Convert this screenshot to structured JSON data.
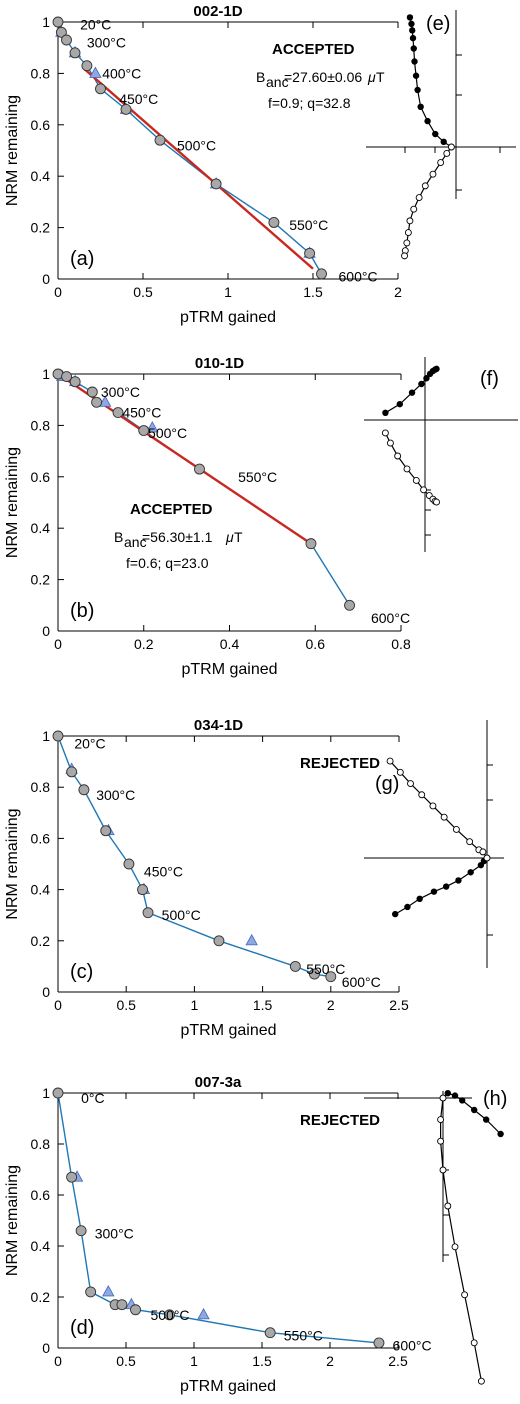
{
  "colors": {
    "line": "#1f78b4",
    "fit": "#c8281e",
    "circle_fill": "#a8a8a8",
    "triangle_fill": "#8fa9e0",
    "triangle_stroke": "#4a6fc4"
  },
  "chart_data": [
    {
      "type": "scatter",
      "panel_label": "(a)",
      "title": "002-1D",
      "xlabel": "pTRM gained",
      "ylabel": "NRM remaining",
      "xlim": [
        0,
        2
      ],
      "ylim": [
        0,
        1
      ],
      "xticks": [
        "0",
        "0.5",
        "1",
        "1.5",
        "2"
      ],
      "yticks": [
        "0",
        "0.2",
        "0.4",
        "0.6",
        "0.8",
        "1"
      ],
      "status": "ACCEPTED",
      "stats": {
        "banc_prefix": "B",
        "banc_sub": "anc",
        "banc_value": "=27.60±0.06",
        "banc_mu": "μ",
        "banc_unit": "T",
        "fq": "f=0.9; q=32.8"
      },
      "points": [
        [
          0,
          1
        ],
        [
          0.02,
          0.96
        ],
        [
          0.05,
          0.93
        ],
        [
          0.1,
          0.88
        ],
        [
          0.17,
          0.83
        ],
        [
          0.25,
          0.74
        ],
        [
          0.4,
          0.66
        ],
        [
          0.6,
          0.54
        ],
        [
          0.93,
          0.37
        ],
        [
          1.27,
          0.22
        ],
        [
          1.48,
          0.1
        ],
        [
          1.55,
          0.02
        ]
      ],
      "checks": [
        [
          0.02,
          0.96
        ],
        [
          0.1,
          0.88
        ],
        [
          0.22,
          0.8
        ],
        [
          0.4,
          0.66
        ],
        [
          0.93,
          0.37
        ],
        [
          1.48,
          0.1
        ]
      ],
      "fit": [
        [
          0.15,
          0.82
        ],
        [
          1.5,
          0.04
        ]
      ],
      "temp_labels": [
        {
          "text": "20°C",
          "x": 0.13,
          "y": 0.99
        },
        {
          "text": "300°C",
          "x": 0.17,
          "y": 0.92
        },
        {
          "text": "400°C",
          "x": 0.26,
          "y": 0.8
        },
        {
          "text": "450°C",
          "x": 0.36,
          "y": 0.7
        },
        {
          "text": "500°C",
          "x": 0.7,
          "y": 0.52
        },
        {
          "text": "550°C",
          "x": 1.36,
          "y": 0.21
        },
        {
          "text": "600°C",
          "x": 1.65,
          "y": 0.01
        }
      ]
    },
    {
      "type": "scatter",
      "panel_label": "(b)",
      "title": "010-1D",
      "xlabel": "pTRM gained",
      "ylabel": "NRM remaining",
      "xlim": [
        0,
        0.8
      ],
      "ylim": [
        0,
        1
      ],
      "xticks": [
        "0",
        "0.2",
        "0.4",
        "0.6",
        "0.8"
      ],
      "yticks": [
        "0",
        "0.2",
        "0.4",
        "0.6",
        "0.8",
        "1"
      ],
      "status": "ACCEPTED",
      "stats": {
        "banc_prefix": "B",
        "banc_sub": "anc",
        "banc_value": "=56.30±1.1",
        "banc_mu": "μ",
        "banc_unit": "T",
        "fq": "f=0.6; q=23.0"
      },
      "points": [
        [
          0,
          1
        ],
        [
          0.02,
          0.99
        ],
        [
          0.04,
          0.97
        ],
        [
          0.08,
          0.93
        ],
        [
          0.09,
          0.89
        ],
        [
          0.14,
          0.85
        ],
        [
          0.2,
          0.78
        ],
        [
          0.33,
          0.63
        ],
        [
          0.59,
          0.34
        ],
        [
          0.68,
          0.1
        ]
      ],
      "checks": [
        [
          0.01,
          0.99
        ],
        [
          0.04,
          0.97
        ],
        [
          0.11,
          0.89
        ],
        [
          0.22,
          0.79
        ]
      ],
      "fit": [
        [
          0.0,
          1.0
        ],
        [
          0.59,
          0.34
        ]
      ],
      "temp_labels": [
        {
          "text": "300°C",
          "x": 0.1,
          "y": 0.93
        },
        {
          "text": "450°C",
          "x": 0.15,
          "y": 0.85
        },
        {
          "text": "500°C",
          "x": 0.21,
          "y": 0.77
        },
        {
          "text": "550°C",
          "x": 0.42,
          "y": 0.6
        },
        {
          "text": "600°C",
          "x": 0.73,
          "y": 0.05
        }
      ]
    },
    {
      "type": "scatter",
      "panel_label": "(c)",
      "title": "034-1D",
      "xlabel": "pTRM gained",
      "ylabel": "NRM remaining",
      "xlim": [
        0,
        2.5
      ],
      "ylim": [
        0,
        1
      ],
      "xticks": [
        "0",
        "0.5",
        "1",
        "1.5",
        "2",
        "2.5"
      ],
      "yticks": [
        "0",
        "0.2",
        "0.4",
        "0.6",
        "0.8",
        "1"
      ],
      "status": "REJECTED",
      "points": [
        [
          0,
          1
        ],
        [
          0.1,
          0.86
        ],
        [
          0.19,
          0.79
        ],
        [
          0.35,
          0.63
        ],
        [
          0.52,
          0.5
        ],
        [
          0.62,
          0.4
        ],
        [
          0.66,
          0.31
        ],
        [
          1.18,
          0.2
        ],
        [
          1.74,
          0.1
        ],
        [
          1.88,
          0.07
        ],
        [
          2.0,
          0.06
        ]
      ],
      "checks": [
        [
          0.1,
          0.87
        ],
        [
          0.37,
          0.63
        ],
        [
          0.63,
          0.4
        ],
        [
          1.42,
          0.2
        ]
      ],
      "temp_labels": [
        {
          "text": "20°C",
          "x": 0.12,
          "y": 0.97
        },
        {
          "text": "300°C",
          "x": 0.28,
          "y": 0.77
        },
        {
          "text": "450°C",
          "x": 0.63,
          "y": 0.47
        },
        {
          "text": "500°C",
          "x": 0.76,
          "y": 0.3
        },
        {
          "text": "550°C",
          "x": 1.82,
          "y": 0.09
        },
        {
          "text": "600°C",
          "x": 2.08,
          "y": 0.04
        }
      ]
    },
    {
      "type": "scatter",
      "panel_label": "(d)",
      "title": "007-3a",
      "xlabel": "pTRM gained",
      "ylabel": "NRM remaining",
      "xlim": [
        0,
        2.5
      ],
      "ylim": [
        0,
        1
      ],
      "xticks": [
        "0",
        "0.5",
        "1",
        "1.5",
        "2",
        "2.5"
      ],
      "yticks": [
        "0",
        "0.2",
        "0.4",
        "0.6",
        "0.8",
        "1"
      ],
      "status": "REJECTED",
      "points": [
        [
          0,
          1
        ],
        [
          0.1,
          0.67
        ],
        [
          0.17,
          0.46
        ],
        [
          0.24,
          0.22
        ],
        [
          0.42,
          0.17
        ],
        [
          0.47,
          0.17
        ],
        [
          0.57,
          0.15
        ],
        [
          0.82,
          0.13
        ],
        [
          1.56,
          0.06
        ],
        [
          2.36,
          0.02
        ]
      ],
      "checks": [
        [
          0.14,
          0.67
        ],
        [
          0.37,
          0.22
        ],
        [
          0.54,
          0.17
        ],
        [
          1.07,
          0.13
        ]
      ],
      "temp_labels": [
        {
          "text": "0°C",
          "x": 0.17,
          "y": 0.98
        },
        {
          "text": "300°C",
          "x": 0.27,
          "y": 0.45
        },
        {
          "text": "500°C",
          "x": 0.68,
          "y": 0.13
        },
        {
          "text": "550°C",
          "x": 1.66,
          "y": 0.05
        },
        {
          "text": "600°C",
          "x": 2.46,
          "y": 0.01
        }
      ]
    }
  ],
  "zijderveld": [
    {
      "label": "(e)",
      "filled": [
        [
          -0.6,
          1.0
        ],
        [
          -0.58,
          0.95
        ],
        [
          -0.57,
          0.9
        ],
        [
          -0.56,
          0.84
        ],
        [
          -0.55,
          0.76
        ],
        [
          -0.54,
          0.66
        ],
        [
          -0.52,
          0.55
        ],
        [
          -0.5,
          0.44
        ],
        [
          -0.46,
          0.31
        ],
        [
          -0.37,
          0.2
        ],
        [
          -0.27,
          0.1
        ],
        [
          -0.16,
          0.04
        ],
        [
          -0.06,
          0.0
        ]
      ],
      "open": [
        [
          -0.06,
          0.0
        ],
        [
          -0.12,
          -0.05
        ],
        [
          -0.2,
          -0.12
        ],
        [
          -0.3,
          -0.21
        ],
        [
          -0.4,
          -0.3
        ],
        [
          -0.48,
          -0.39
        ],
        [
          -0.55,
          -0.48
        ],
        [
          -0.6,
          -0.57
        ],
        [
          -0.62,
          -0.66
        ],
        [
          -0.64,
          -0.74
        ],
        [
          -0.66,
          -0.8
        ],
        [
          -0.67,
          -0.84
        ]
      ]
    },
    {
      "label": "(f)",
      "filled": [
        [
          -0.55,
          0.1
        ],
        [
          -0.35,
          0.22
        ],
        [
          -0.18,
          0.38
        ],
        [
          -0.05,
          0.5
        ],
        [
          0.02,
          0.58
        ],
        [
          0.07,
          0.64
        ],
        [
          0.11,
          0.68
        ],
        [
          0.14,
          0.7
        ],
        [
          0.16,
          0.71
        ]
      ],
      "open": [
        [
          -0.55,
          -0.18
        ],
        [
          -0.48,
          -0.32
        ],
        [
          -0.38,
          -0.5
        ],
        [
          -0.25,
          -0.68
        ],
        [
          -0.12,
          -0.84
        ],
        [
          -0.02,
          -0.97
        ],
        [
          0.06,
          -1.05
        ],
        [
          0.11,
          -1.1
        ],
        [
          0.14,
          -1.13
        ],
        [
          0.16,
          -1.14
        ]
      ]
    },
    {
      "label": "(g)",
      "filled": [
        [
          -0.9,
          -0.55
        ],
        [
          -0.78,
          -0.48
        ],
        [
          -0.66,
          -0.4
        ],
        [
          -0.52,
          -0.33
        ],
        [
          -0.4,
          -0.28
        ],
        [
          -0.28,
          -0.22
        ],
        [
          -0.16,
          -0.14
        ],
        [
          -0.06,
          -0.07
        ],
        [
          -0.03,
          -0.03
        ],
        [
          0.0,
          0.0
        ]
      ],
      "open": [
        [
          -0.95,
          0.95
        ],
        [
          -0.85,
          0.84
        ],
        [
          -0.75,
          0.73
        ],
        [
          -0.64,
          0.62
        ],
        [
          -0.53,
          0.51
        ],
        [
          -0.42,
          0.4
        ],
        [
          -0.3,
          0.28
        ],
        [
          -0.17,
          0.16
        ],
        [
          -0.08,
          0.08
        ],
        [
          -0.04,
          0.06
        ],
        [
          0.0,
          0.0
        ]
      ]
    },
    {
      "label": "(h)",
      "filled": [
        [
          0.0,
          0.0
        ],
        [
          0.02,
          0.02
        ],
        [
          0.05,
          0.01
        ],
        [
          0.08,
          -0.01
        ],
        [
          0.13,
          -0.05
        ],
        [
          0.18,
          -0.09
        ],
        [
          0.24,
          -0.15
        ]
      ],
      "open": [
        [
          0.0,
          0.0
        ],
        [
          -0.01,
          -0.09
        ],
        [
          -0.01,
          -0.18
        ],
        [
          0.0,
          -0.3
        ],
        [
          0.02,
          -0.45
        ],
        [
          0.05,
          -0.62
        ],
        [
          0.09,
          -0.82
        ],
        [
          0.13,
          -1.02
        ],
        [
          0.16,
          -1.18
        ]
      ]
    }
  ]
}
